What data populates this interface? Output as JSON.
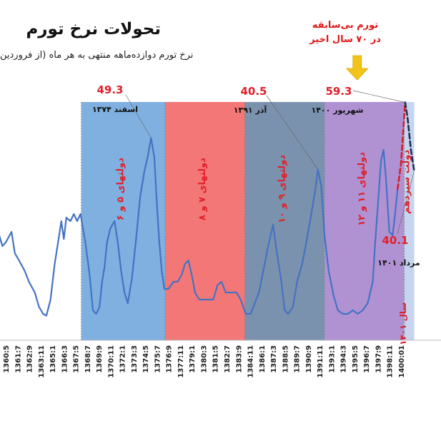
{
  "chart_data": {
    "type": "line",
    "title": "تحولات نرخ تورم",
    "subtitle": "نرخ تورم دوازده‌ماهه منتهی به هر ماه (از فروردین",
    "top_note": [
      "تورم بی‌سابقه",
      "در ۷۰ سال اخیر"
    ],
    "x_tick_labels": [
      "1360:5",
      "1361:7",
      "1362:9",
      "1363:11",
      "1365:1",
      "1366:3",
      "1367:5",
      "1368:7",
      "1369:9",
      "1370:11",
      "1372:1",
      "1373:3",
      "1374:5",
      "1375:7",
      "1376:9",
      "1377:11",
      "1379:1",
      "1380:3",
      "1381:5",
      "1382:7",
      "1383:9",
      "1384:11",
      "1386:1",
      "1387:3",
      "1388:5",
      "1389:7",
      "1390:9",
      "1391:11",
      "1393:1",
      "1394:3",
      "1395:5",
      "1396:7",
      "1397:9",
      "1398:11",
      "1400:01"
    ],
    "x_label_extra": "سال ۱۴۰۱",
    "colors": {
      "line": "#4472c4",
      "red_label": "#e0202a",
      "forecast_red": "#d21f2a",
      "forecast_dark": "#1f2f4f"
    },
    "bands": [
      {
        "label": "دولتهای ۵ و ۶",
        "start": "1367:12",
        "end": "1376:05",
        "color": "#7fb0e0"
      },
      {
        "label": "دولتهای ۷ و ۸",
        "start": "1376:05",
        "end": "1384:05",
        "color": "#f47777"
      },
      {
        "label": "دولتهای ۹ و ۱۰",
        "start": "1384:05",
        "end": "1392:05",
        "color": "#7b92ae"
      },
      {
        "label": "دولتهای ۱۱ و ۱۲",
        "start": "1392:05",
        "end": "1400:05",
        "color": "#b092d3"
      },
      {
        "label": "دولت سیزدهم",
        "start": "1400:05",
        "end": "1401:05",
        "color": "#c6d5ef"
      }
    ],
    "annotations": [
      {
        "value": "49.3",
        "date": "اسفند ۱۳۷۴",
        "x": "1374:12",
        "y": 49.3
      },
      {
        "value": "40.5",
        "date": "آذر ۱۳۹۱",
        "x": "1391:09",
        "y": 40.5
      },
      {
        "value": "59.3",
        "date": "شهریور ۱۴۰۰",
        "x": "1400:06",
        "y": 59.3
      },
      {
        "value": "40.1",
        "date": "مرداد ۱۴۰۱",
        "x": "1401:05",
        "y": 40.1
      }
    ],
    "series": [
      {
        "values": [
          [
            "1359:04",
            26
          ],
          [
            "1359:08",
            23
          ],
          [
            "1360:01",
            19
          ],
          [
            "1360:05",
            20
          ],
          [
            "1360:12",
            23
          ],
          [
            "1361:04",
            17
          ],
          [
            "1361:09",
            15
          ],
          [
            "1362:04",
            12
          ],
          [
            "1362:09",
            9
          ],
          [
            "1363:04",
            6
          ],
          [
            "1363:09",
            2
          ],
          [
            "1364:02",
            0
          ],
          [
            "1364:06",
            -0.5
          ],
          [
            "1364:11",
            4
          ],
          [
            "1365:04",
            14
          ],
          [
            "1365:08",
            20
          ],
          [
            "1365:12",
            26
          ],
          [
            "1366:03",
            21
          ],
          [
            "1366:06",
            27
          ],
          [
            "1366:11",
            26
          ],
          [
            "1367:03",
            28
          ],
          [
            "1367:07",
            26
          ],
          [
            "1367:11",
            28
          ],
          [
            "1368:05",
            20
          ],
          [
            "1368:10",
            11
          ],
          [
            "1369:02",
            1
          ],
          [
            "1369:06",
            0
          ],
          [
            "1369:10",
            2
          ],
          [
            "1370:01",
            9
          ],
          [
            "1370:04",
            13
          ],
          [
            "1370:07",
            20
          ],
          [
            "1370:11",
            24
          ],
          [
            "1371:04",
            26
          ],
          [
            "1371:08",
            20
          ],
          [
            "1371:12",
            12
          ],
          [
            "1372:04",
            6
          ],
          [
            "1372:08",
            3
          ],
          [
            "1373:01",
            10
          ],
          [
            "1373:06",
            21
          ],
          [
            "1373:11",
            33
          ],
          [
            "1374:04",
            40
          ],
          [
            "1374:08",
            44
          ],
          [
            "1374:12",
            49.3
          ],
          [
            "1375:04",
            44
          ],
          [
            "1375:07",
            31
          ],
          [
            "1375:10",
            20
          ],
          [
            "1376:01",
            12
          ],
          [
            "1376:04",
            7
          ],
          [
            "1376:09",
            7
          ],
          [
            "1377:03",
            9
          ],
          [
            "1377:08",
            9
          ],
          [
            "1378:01",
            11
          ],
          [
            "1378:05",
            14
          ],
          [
            "1378:09",
            15
          ],
          [
            "1379:01",
            11
          ],
          [
            "1379:05",
            6
          ],
          [
            "1379:10",
            4
          ],
          [
            "1380:03",
            4
          ],
          [
            "1380:09",
            4
          ],
          [
            "1381:03",
            4
          ],
          [
            "1381:08",
            8
          ],
          [
            "1382:01",
            9
          ],
          [
            "1382:06",
            6
          ],
          [
            "1383:01",
            6
          ],
          [
            "1383:07",
            6
          ],
          [
            "1383:12",
            4
          ],
          [
            "1384:06",
            0
          ],
          [
            "1384:12",
            0
          ],
          [
            "1385:05",
            3
          ],
          [
            "1385:10",
            6
          ],
          [
            "1386:04",
            13
          ],
          [
            "1386:09",
            19
          ],
          [
            "1387:03",
            25
          ],
          [
            "1387:07",
            18
          ],
          [
            "1388:01",
            9
          ],
          [
            "1388:05",
            1
          ],
          [
            "1388:09",
            0
          ],
          [
            "1389:03",
            2
          ],
          [
            "1389:08",
            9
          ],
          [
            "1390:02",
            14
          ],
          [
            "1390:07",
            20
          ],
          [
            "1391:01",
            28
          ],
          [
            "1391:06",
            35
          ],
          [
            "1391:09",
            40.5
          ],
          [
            "1392:01",
            36
          ],
          [
            "1392:05",
            22
          ],
          [
            "1392:10",
            12
          ],
          [
            "1393:04",
            5
          ],
          [
            "1393:09",
            1
          ],
          [
            "1394:03",
            0
          ],
          [
            "1394:09",
            0
          ],
          [
            "1395:03",
            1
          ],
          [
            "1395:09",
            0
          ],
          [
            "1396:03",
            1
          ],
          [
            "1396:09",
            3
          ],
          [
            "1397:03",
            9
          ],
          [
            "1397:06",
            20
          ],
          [
            "1397:10",
            33
          ],
          [
            "1398:01",
            43
          ],
          [
            "1398:04",
            46
          ],
          [
            "1398:07",
            38
          ],
          [
            "1398:11",
            23
          ],
          [
            "1399:03",
            22
          ],
          [
            "1399:06",
            28
          ],
          [
            "1399:09",
            35
          ]
        ]
      },
      {
        "values": [
          [
            "1399:09",
            35
          ],
          [
            "1400:01",
            42
          ],
          [
            "1400:04",
            52
          ],
          [
            "1400:06",
            59.3
          ]
        ]
      },
      {
        "values": [
          [
            "1400:06",
            59.3
          ],
          [
            "1400:09",
            55
          ],
          [
            "1401:01",
            46
          ],
          [
            "1401:05",
            40.1
          ]
        ]
      }
    ]
  }
}
